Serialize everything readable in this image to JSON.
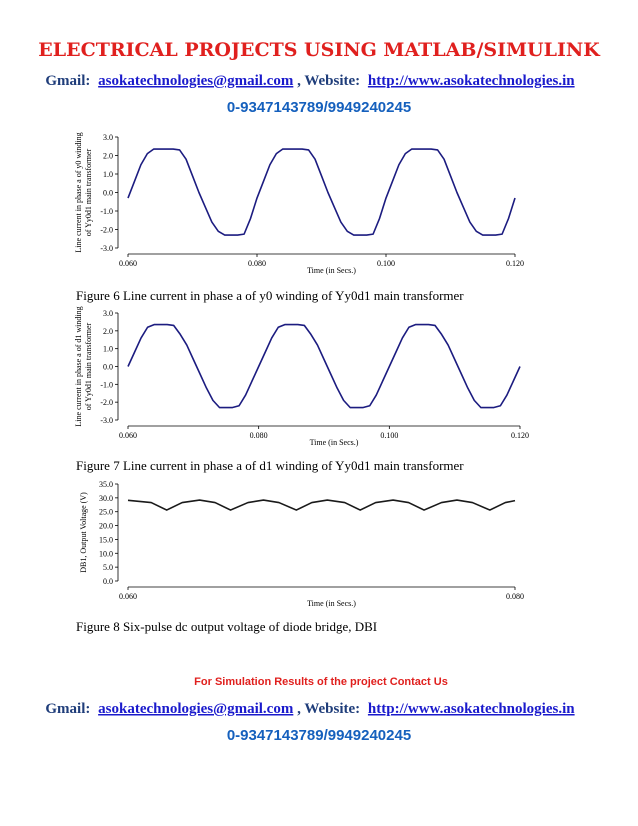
{
  "header": {
    "title": "ELECTRICAL PROJECTS USING MATLAB/SIMULINK",
    "email_label": "Gmail:",
    "email": "asokatechnologies@gmail.com",
    "website_label": ", Website:",
    "website": "http://www.asokatechnologies.in",
    "phone": "0-9347143789/9949240245"
  },
  "chart_data": [
    {
      "type": "line",
      "color": "#1c1c80",
      "x": [
        0.06,
        0.061,
        0.062,
        0.063,
        0.064,
        0.065,
        0.066,
        0.067,
        0.068,
        0.069,
        0.07,
        0.071,
        0.072,
        0.073,
        0.074,
        0.075,
        0.076,
        0.077,
        0.078,
        0.079,
        0.08,
        0.081,
        0.082,
        0.083,
        0.084,
        0.085,
        0.086,
        0.087,
        0.088,
        0.089,
        0.09,
        0.091,
        0.092,
        0.093,
        0.094,
        0.095,
        0.096,
        0.097,
        0.098,
        0.099,
        0.1,
        0.101,
        0.102,
        0.103,
        0.104,
        0.105,
        0.106,
        0.107,
        0.108,
        0.109,
        0.11,
        0.111,
        0.112,
        0.113,
        0.114,
        0.115,
        0.116,
        0.117,
        0.118,
        0.119,
        0.12
      ],
      "values": [
        -0.3,
        0.6,
        1.5,
        2.1,
        2.35,
        2.35,
        2.35,
        2.35,
        2.3,
        1.8,
        0.9,
        0.0,
        -0.8,
        -1.6,
        -2.1,
        -2.3,
        -2.3,
        -2.3,
        -2.25,
        -1.4,
        -0.3,
        0.6,
        1.5,
        2.1,
        2.35,
        2.35,
        2.35,
        2.35,
        2.3,
        1.8,
        0.9,
        0.0,
        -0.8,
        -1.6,
        -2.1,
        -2.3,
        -2.3,
        -2.3,
        -2.25,
        -1.4,
        -0.3,
        0.6,
        1.5,
        2.1,
        2.35,
        2.35,
        2.35,
        2.35,
        2.3,
        1.8,
        0.9,
        0.0,
        -0.8,
        -1.6,
        -2.1,
        -2.3,
        -2.3,
        -2.3,
        -2.25,
        -1.4,
        -0.3
      ],
      "xlim": [
        0.06,
        0.12
      ],
      "ylim": [
        -3,
        3
      ],
      "xticks": [
        {
          "value": 0.06,
          "label": "0.060"
        },
        {
          "value": 0.08,
          "label": "0.080"
        },
        {
          "value": 0.1,
          "label": "0.100"
        },
        {
          "value": 0.12,
          "label": "0.120"
        }
      ],
      "yticks": [
        {
          "value": 3,
          "label": "3.0"
        },
        {
          "value": 2,
          "label": "2.0"
        },
        {
          "value": 1,
          "label": "1.0"
        },
        {
          "value": 0,
          "label": "0.0"
        },
        {
          "value": -1,
          "label": "-1.0"
        },
        {
          "value": -2,
          "label": "-2.0"
        },
        {
          "value": -3,
          "label": "-3.0"
        }
      ],
      "xlabel": "Time (in Secs.)",
      "ylabel": [
        "Line current in phase a of y0 winding",
        "of Yy0d1 main transformer"
      ]
    },
    {
      "type": "line",
      "color": "#1c1c80",
      "x": [
        0.06,
        0.061,
        0.062,
        0.063,
        0.064,
        0.065,
        0.066,
        0.067,
        0.068,
        0.069,
        0.07,
        0.071,
        0.072,
        0.073,
        0.074,
        0.075,
        0.076,
        0.077,
        0.078,
        0.079,
        0.08,
        0.081,
        0.082,
        0.083,
        0.084,
        0.085,
        0.086,
        0.087,
        0.088,
        0.089,
        0.09,
        0.091,
        0.092,
        0.093,
        0.094,
        0.095,
        0.096,
        0.097,
        0.098,
        0.099,
        0.1,
        0.101,
        0.102,
        0.103,
        0.104,
        0.105,
        0.106,
        0.107,
        0.108,
        0.109,
        0.11,
        0.111,
        0.112,
        0.113,
        0.114,
        0.115,
        0.116,
        0.117,
        0.118,
        0.119,
        0.12
      ],
      "values": [
        0.0,
        0.8,
        1.6,
        2.2,
        2.35,
        2.35,
        2.35,
        2.3,
        1.8,
        1.2,
        0.4,
        -0.4,
        -1.2,
        -1.9,
        -2.3,
        -2.3,
        -2.3,
        -2.2,
        -1.6,
        -0.8,
        0.0,
        0.8,
        1.6,
        2.2,
        2.35,
        2.35,
        2.35,
        2.3,
        1.8,
        1.2,
        0.4,
        -0.4,
        -1.2,
        -1.9,
        -2.3,
        -2.3,
        -2.3,
        -2.2,
        -1.6,
        -0.8,
        0.0,
        0.8,
        1.6,
        2.2,
        2.35,
        2.35,
        2.35,
        2.3,
        1.8,
        1.2,
        0.4,
        -0.4,
        -1.2,
        -1.9,
        -2.3,
        -2.3,
        -2.3,
        -2.2,
        -1.6,
        -0.8,
        0.0
      ],
      "xlim": [
        0.06,
        0.12
      ],
      "ylim": [
        -3,
        3
      ],
      "xticks": [
        {
          "value": 0.06,
          "label": "0.060"
        },
        {
          "value": 0.08,
          "label": "0.080"
        },
        {
          "value": 0.1,
          "label": "0.100"
        },
        {
          "value": 0.12,
          "label": "0.120"
        }
      ],
      "yticks": [
        {
          "value": 3,
          "label": "3.0"
        },
        {
          "value": 2,
          "label": "2.0"
        },
        {
          "value": 1,
          "label": "1.0"
        },
        {
          "value": 0,
          "label": "0.0"
        },
        {
          "value": -1,
          "label": "-1.0"
        },
        {
          "value": -2,
          "label": "-2.0"
        },
        {
          "value": -3,
          "label": "-3.0"
        }
      ],
      "xlabel": "Time (in Secs.)",
      "ylabel": [
        "Line current in phase a of d1 winding",
        "of Yy0d1 main transformer"
      ]
    },
    {
      "type": "line",
      "color": "#1a1a1a",
      "x": [
        0.06,
        0.0612,
        0.062,
        0.0628,
        0.0637,
        0.0645,
        0.0653,
        0.0662,
        0.067,
        0.0678,
        0.0687,
        0.0695,
        0.0703,
        0.0712,
        0.072,
        0.0728,
        0.0737,
        0.0745,
        0.0753,
        0.0762,
        0.077,
        0.0778,
        0.0787,
        0.0795,
        0.08
      ],
      "values": [
        29.1,
        28.3,
        25.6,
        28.3,
        29.2,
        28.3,
        25.6,
        28.3,
        29.2,
        28.3,
        25.6,
        28.3,
        29.2,
        28.3,
        25.6,
        28.3,
        29.2,
        28.3,
        25.6,
        28.3,
        29.2,
        28.3,
        25.6,
        28.3,
        29.0
      ],
      "xlim": [
        0.06,
        0.08
      ],
      "ylim": [
        0,
        35
      ],
      "xticks": [
        {
          "value": 0.06,
          "label": "0.060"
        },
        {
          "value": 0.08,
          "label": "0.080"
        }
      ],
      "yticks": [
        {
          "value": 35,
          "label": "35.0"
        },
        {
          "value": 30,
          "label": "30.0"
        },
        {
          "value": 25,
          "label": "25.0"
        },
        {
          "value": 20,
          "label": "20.0"
        },
        {
          "value": 15,
          "label": "15.0"
        },
        {
          "value": 10,
          "label": "10.0"
        },
        {
          "value": 5,
          "label": "5.0"
        },
        {
          "value": 0,
          "label": "0.0"
        }
      ],
      "xlabel": "Time (in Secs.)",
      "ylabel": [
        "DB1, Output Voltage (V)"
      ]
    }
  ],
  "captions": [
    "Figure 6 Line current in phase a of y0 winding of Yy0d1 main transformer",
    "Figure 7 Line current in phase a of d1 winding of Yy0d1 main transformer",
    "Figure 8 Six-pulse dc output voltage of diode bridge, DBI"
  ],
  "footer": {
    "note": "For Simulation Results of the project Contact Us",
    "email_label": "Gmail:",
    "email": "asokatechnologies@gmail.com",
    "website_label": ", Website:",
    "website": "http://www.asokatechnologies.in",
    "phone": "0-9347143789/9949240245"
  }
}
